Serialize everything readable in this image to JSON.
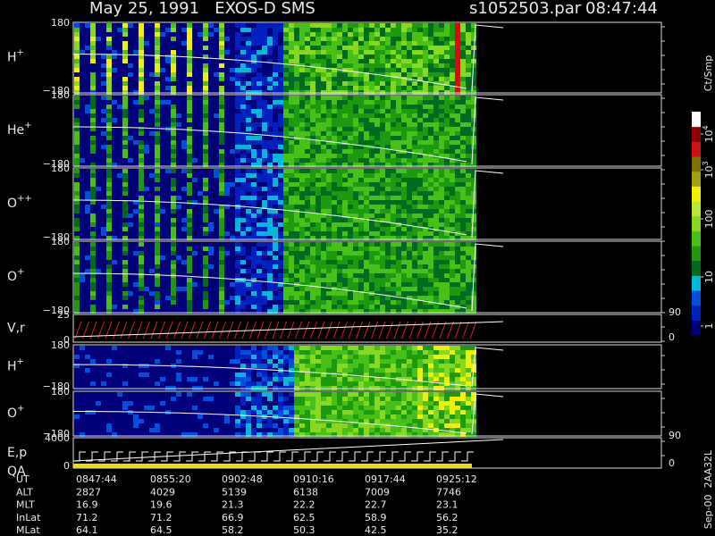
{
  "header": {
    "title": "May 25, 1991   EXOS-D SMS",
    "file": "s1052503.par",
    "time": "08:47:44"
  },
  "panels": [
    {
      "label": {
        "ion": "H",
        "charge": "+"
      },
      "ticks": [
        "180",
        "−180"
      ]
    },
    {
      "label": {
        "ion": "He",
        "charge": "+"
      },
      "ticks": [
        "180",
        "−180"
      ]
    },
    {
      "label": {
        "ion": "O",
        "charge": "++"
      },
      "ticks": [
        "180",
        "−180"
      ]
    },
    {
      "label": {
        "ion": "O",
        "charge": "+"
      },
      "ticks": [
        "180",
        "−180"
      ]
    },
    {
      "label": {
        "ion": "V,r"
      },
      "ticks": [
        "25",
        "0"
      ],
      "right_ticks": [
        "90",
        "0"
      ]
    },
    {
      "label": {
        "ion": "H",
        "charge": "+"
      },
      "ticks": [
        "180",
        "−180"
      ]
    },
    {
      "label": {
        "ion": "O",
        "charge": "+"
      },
      "ticks": [
        "180",
        "−180"
      ]
    },
    {
      "label": {
        "ion": "E,p",
        "line2": "QA"
      },
      "ticks": [
        "4000",
        "0"
      ],
      "right_ticks": [
        "90",
        "0"
      ]
    }
  ],
  "colorbar": {
    "title": "Ct/Smp",
    "ticks": [
      {
        "base": "10",
        "exp": "4"
      },
      {
        "base": "10",
        "exp": "3"
      },
      "100",
      "10",
      "1"
    ]
  },
  "table": {
    "rows": [
      {
        "name": "UT",
        "cells": [
          "0847:44",
          "0855:20",
          "0902:48",
          "0910:16",
          "0917:44",
          "0925:12"
        ]
      },
      {
        "name": "ALT",
        "cells": [
          "2827",
          "4029",
          "5139",
          "6138",
          "7009",
          "7746"
        ]
      },
      {
        "name": "MLT",
        "cells": [
          "16.9",
          "19.6",
          "21.3",
          "22.2",
          "22.7",
          "23.1"
        ]
      },
      {
        "name": "InLat",
        "cells": [
          "71.2",
          "71.2",
          "66.9",
          "62.5",
          "58.9",
          "56.2"
        ]
      },
      {
        "name": "MLat",
        "cells": [
          "64.1",
          "64.5",
          "58.2",
          "50.3",
          "42.5",
          "35.2"
        ]
      }
    ]
  },
  "footer": "Sep-00  2AA32L"
}
